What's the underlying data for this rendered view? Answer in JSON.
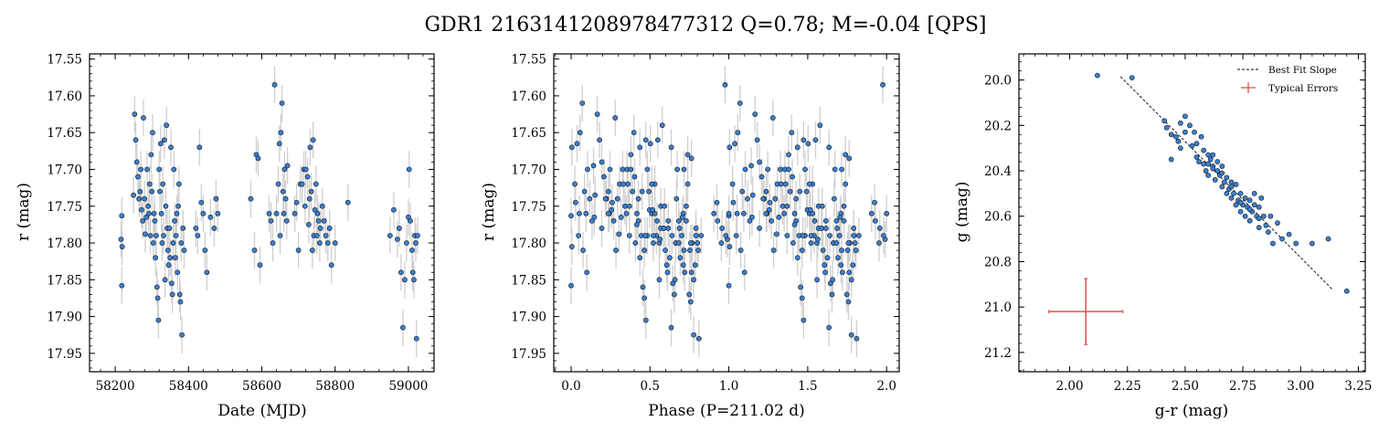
{
  "figure": {
    "title": "GDR1 2163141208978477312  Q=0.78; M=-0.04 [QPS]",
    "marker_color": "#3a7fd0",
    "marker_edge": "#1a1a1a",
    "errorbar_color": "#cfcfcf",
    "fit_color": "#000000",
    "typical_error_color": "#d9534f"
  },
  "chart_data": [
    {
      "id": "time",
      "type": "scatter",
      "xlabel": "Date (MJD)",
      "ylabel": "r (mag)",
      "xlim": [
        58130,
        59070
      ],
      "ylim": [
        17.975,
        17.543
      ],
      "y_inverted": true,
      "xticks": [
        58200,
        58400,
        58600,
        58800,
        59000
      ],
      "yticks": [
        17.55,
        17.6,
        17.65,
        17.7,
        17.75,
        17.8,
        17.85,
        17.9,
        17.95
      ],
      "xtick_labels": [
        "58200",
        "58400",
        "58600",
        "58800",
        "59000"
      ],
      "ytick_labels": [
        "17.55",
        "17.60",
        "17.65",
        "17.70",
        "17.75",
        "17.80",
        "17.85",
        "17.90",
        "17.95"
      ],
      "y_err": 0.025,
      "points": [
        [
          58218,
          17.858
        ],
        [
          58216,
          17.795
        ],
        [
          58218,
          17.763
        ],
        [
          58219,
          17.805
        ],
        [
          58250,
          17.735
        ],
        [
          58253,
          17.625
        ],
        [
          58256,
          17.66
        ],
        [
          58259,
          17.69
        ],
        [
          58262,
          17.71
        ],
        [
          58265,
          17.74
        ],
        [
          58268,
          17.73
        ],
        [
          58270,
          17.7
        ],
        [
          58272,
          17.755
        ],
        [
          58275,
          17.77
        ],
        [
          58277,
          17.63
        ],
        [
          58280,
          17.74
        ],
        [
          58282,
          17.788
        ],
        [
          58285,
          17.765
        ],
        [
          58287,
          17.7
        ],
        [
          58290,
          17.75
        ],
        [
          58292,
          17.76
        ],
        [
          58294,
          17.72
        ],
        [
          58296,
          17.79
        ],
        [
          58298,
          17.68
        ],
        [
          58300,
          17.73
        ],
        [
          58302,
          17.65
        ],
        [
          58304,
          17.8
        ],
        [
          58306,
          17.76
        ],
        [
          58308,
          17.77
        ],
        [
          58310,
          17.82
        ],
        [
          58312,
          17.79
        ],
        [
          58314,
          17.86
        ],
        [
          58316,
          17.875
        ],
        [
          58318,
          17.905
        ],
        [
          58320,
          17.7
        ],
        [
          58322,
          17.73
        ],
        [
          58324,
          17.665
        ],
        [
          58326,
          17.76
        ],
        [
          58328,
          17.8
        ],
        [
          58330,
          17.72
        ],
        [
          58332,
          17.79
        ],
        [
          58334,
          17.66
        ],
        [
          58336,
          17.85
        ],
        [
          58338,
          17.75
        ],
        [
          58340,
          17.64
        ],
        [
          58342,
          17.78
        ],
        [
          58344,
          17.81
        ],
        [
          58346,
          17.83
        ],
        [
          58348,
          17.78
        ],
        [
          58350,
          17.82
        ],
        [
          58352,
          17.67
        ],
        [
          58354,
          17.855
        ],
        [
          58356,
          17.87
        ],
        [
          58358,
          17.8
        ],
        [
          58360,
          17.7
        ],
        [
          58362,
          17.77
        ],
        [
          58364,
          17.82
        ],
        [
          58366,
          17.79
        ],
        [
          58368,
          17.76
        ],
        [
          58370,
          17.84
        ],
        [
          58372,
          17.75
        ],
        [
          58374,
          17.72
        ],
        [
          58376,
          17.87
        ],
        [
          58378,
          17.88
        ],
        [
          58380,
          17.8
        ],
        [
          58382,
          17.925
        ],
        [
          58385,
          17.78
        ],
        [
          58388,
          17.81
        ],
        [
          58420,
          17.78
        ],
        [
          58425,
          17.79
        ],
        [
          58430,
          17.67
        ],
        [
          58435,
          17.745
        ],
        [
          58440,
          17.76
        ],
        [
          58445,
          17.81
        ],
        [
          58450,
          17.84
        ],
        [
          58460,
          17.765
        ],
        [
          58470,
          17.78
        ],
        [
          58475,
          17.74
        ],
        [
          58480,
          17.76
        ],
        [
          58570,
          17.74
        ],
        [
          58580,
          17.81
        ],
        [
          58585,
          17.68
        ],
        [
          58590,
          17.685
        ],
        [
          58595,
          17.83
        ],
        [
          58620,
          17.76
        ],
        [
          58625,
          17.77
        ],
        [
          58630,
          17.8
        ],
        [
          58635,
          17.585
        ],
        [
          58640,
          17.76
        ],
        [
          58645,
          17.72
        ],
        [
          58648,
          17.665
        ],
        [
          58650,
          17.79
        ],
        [
          58652,
          17.65
        ],
        [
          58655,
          17.61
        ],
        [
          58658,
          17.73
        ],
        [
          58660,
          17.76
        ],
        [
          58662,
          17.7
        ],
        [
          58665,
          17.74
        ],
        [
          58668,
          17.77
        ],
        [
          58670,
          17.695
        ],
        [
          58690,
          17.76
        ],
        [
          58695,
          17.745
        ],
        [
          58700,
          17.81
        ],
        [
          58705,
          17.72
        ],
        [
          58710,
          17.72
        ],
        [
          58715,
          17.7
        ],
        [
          58718,
          17.75
        ],
        [
          58720,
          17.7
        ],
        [
          58725,
          17.71
        ],
        [
          58728,
          17.775
        ],
        [
          58730,
          17.74
        ],
        [
          58732,
          17.67
        ],
        [
          58735,
          17.73
        ],
        [
          58738,
          17.81
        ],
        [
          58740,
          17.66
        ],
        [
          58742,
          17.79
        ],
        [
          58745,
          17.755
        ],
        [
          58748,
          17.72
        ],
        [
          58750,
          17.79
        ],
        [
          58752,
          17.76
        ],
        [
          58755,
          17.77
        ],
        [
          58758,
          17.8
        ],
        [
          58760,
          17.78
        ],
        [
          58765,
          17.75
        ],
        [
          58770,
          17.77
        ],
        [
          58775,
          17.79
        ],
        [
          58780,
          17.8
        ],
        [
          58785,
          17.78
        ],
        [
          58790,
          17.83
        ],
        [
          58800,
          17.8
        ],
        [
          58835,
          17.745
        ],
        [
          58950,
          17.79
        ],
        [
          58960,
          17.755
        ],
        [
          58970,
          17.795
        ],
        [
          58975,
          17.78
        ],
        [
          58980,
          17.84
        ],
        [
          58985,
          17.915
        ],
        [
          58990,
          17.85
        ],
        [
          58995,
          17.8
        ],
        [
          59000,
          17.765
        ],
        [
          59002,
          17.7
        ],
        [
          59005,
          17.77
        ],
        [
          59010,
          17.81
        ],
        [
          59012,
          17.84
        ],
        [
          59015,
          17.85
        ],
        [
          59018,
          17.79
        ],
        [
          59020,
          17.8
        ],
        [
          59022,
          17.93
        ],
        [
          59025,
          17.79
        ]
      ]
    },
    {
      "id": "phase",
      "type": "scatter",
      "xlabel": "Phase (P=211.02 d)",
      "ylabel": "r (mag)",
      "xlim": [
        -0.11,
        2.08
      ],
      "ylim": [
        17.975,
        17.543
      ],
      "y_inverted": true,
      "xticks": [
        0.0,
        0.5,
        1.0,
        1.5,
        2.0
      ],
      "yticks": [
        17.55,
        17.6,
        17.65,
        17.7,
        17.75,
        17.8,
        17.85,
        17.9,
        17.95
      ],
      "xtick_labels": [
        "0.0",
        "0.5",
        "1.0",
        "1.5",
        "2.0"
      ],
      "ytick_labels": [
        "17.55",
        "17.60",
        "17.65",
        "17.70",
        "17.75",
        "17.80",
        "17.85",
        "17.90",
        "17.95"
      ],
      "y_err": 0.025,
      "period_days": 211.02
    },
    {
      "id": "color",
      "type": "scatter",
      "xlabel": "g-r (mag)",
      "ylabel": "g (mag)",
      "xlim": [
        1.78,
        3.28
      ],
      "ylim": [
        21.285,
        19.885
      ],
      "y_inverted": true,
      "xticks": [
        2.0,
        2.25,
        2.5,
        2.75,
        3.0,
        3.25
      ],
      "yticks": [
        20.0,
        20.2,
        20.4,
        20.6,
        20.8,
        21.0,
        21.2
      ],
      "xtick_labels": [
        "2.00",
        "2.25",
        "2.50",
        "2.75",
        "3.00",
        "3.25"
      ],
      "ytick_labels": [
        "20.0",
        "20.2",
        "20.4",
        "20.6",
        "20.8",
        "21.0",
        "21.2"
      ],
      "best_fit": {
        "x": [
          2.22,
          3.14
        ],
        "y": [
          19.985,
          20.925
        ]
      },
      "typical_error": {
        "x": 2.07,
        "y": 21.02,
        "xerr": 0.16,
        "yerr": 0.145
      },
      "legend": {
        "position": "top-right",
        "entries": [
          "Best Fit Slope",
          "Typical Errors"
        ]
      },
      "points": [
        [
          2.12,
          19.98
        ],
        [
          2.27,
          19.99
        ],
        [
          2.41,
          20.18
        ],
        [
          2.42,
          20.21
        ],
        [
          2.44,
          20.24
        ],
        [
          2.44,
          20.35
        ],
        [
          2.46,
          20.25
        ],
        [
          2.47,
          20.27
        ],
        [
          2.48,
          20.3
        ],
        [
          2.48,
          20.19
        ],
        [
          2.5,
          20.16
        ],
        [
          2.5,
          20.23
        ],
        [
          2.52,
          20.2
        ],
        [
          2.53,
          20.29
        ],
        [
          2.54,
          20.23
        ],
        [
          2.55,
          20.28
        ],
        [
          2.56,
          20.36
        ],
        [
          2.57,
          20.25
        ],
        [
          2.58,
          20.37
        ],
        [
          2.58,
          20.31
        ],
        [
          2.59,
          20.4
        ],
        [
          2.6,
          20.33
        ],
        [
          2.6,
          20.42
        ],
        [
          2.61,
          20.35
        ],
        [
          2.62,
          20.38
        ],
        [
          2.62,
          20.33
        ],
        [
          2.63,
          20.44
        ],
        [
          2.64,
          20.4
        ],
        [
          2.64,
          20.36
        ],
        [
          2.65,
          20.42
        ],
        [
          2.66,
          20.47
        ],
        [
          2.66,
          20.38
        ],
        [
          2.67,
          20.45
        ],
        [
          2.68,
          20.5
        ],
        [
          2.68,
          20.43
        ],
        [
          2.69,
          20.48
        ],
        [
          2.7,
          20.52
        ],
        [
          2.7,
          20.45
        ],
        [
          2.71,
          20.5
        ],
        [
          2.72,
          20.55
        ],
        [
          2.72,
          20.46
        ],
        [
          2.73,
          20.53
        ],
        [
          2.74,
          20.58
        ],
        [
          2.74,
          20.5
        ],
        [
          2.75,
          20.55
        ],
        [
          2.76,
          20.6
        ],
        [
          2.76,
          20.52
        ],
        [
          2.77,
          20.56
        ],
        [
          2.78,
          20.53
        ],
        [
          2.78,
          20.62
        ],
        [
          2.79,
          20.58
        ],
        [
          2.8,
          20.55
        ],
        [
          2.8,
          20.5
        ],
        [
          2.81,
          20.6
        ],
        [
          2.82,
          20.56
        ],
        [
          2.82,
          20.65
        ],
        [
          2.83,
          20.52
        ],
        [
          2.84,
          20.6
        ],
        [
          2.85,
          20.64
        ],
        [
          2.86,
          20.67
        ],
        [
          2.87,
          20.6
        ],
        [
          2.88,
          20.72
        ],
        [
          2.9,
          20.63
        ],
        [
          2.92,
          20.7
        ],
        [
          2.95,
          20.68
        ],
        [
          2.98,
          20.72
        ],
        [
          3.05,
          20.72
        ],
        [
          3.12,
          20.7
        ],
        [
          3.2,
          20.93
        ],
        [
          2.62,
          20.39
        ],
        [
          2.66,
          20.41
        ],
        [
          2.7,
          20.47
        ],
        [
          2.74,
          20.54
        ],
        [
          2.78,
          20.57
        ],
        [
          2.82,
          20.61
        ],
        [
          2.55,
          20.34
        ],
        [
          2.6,
          20.37
        ]
      ]
    }
  ]
}
